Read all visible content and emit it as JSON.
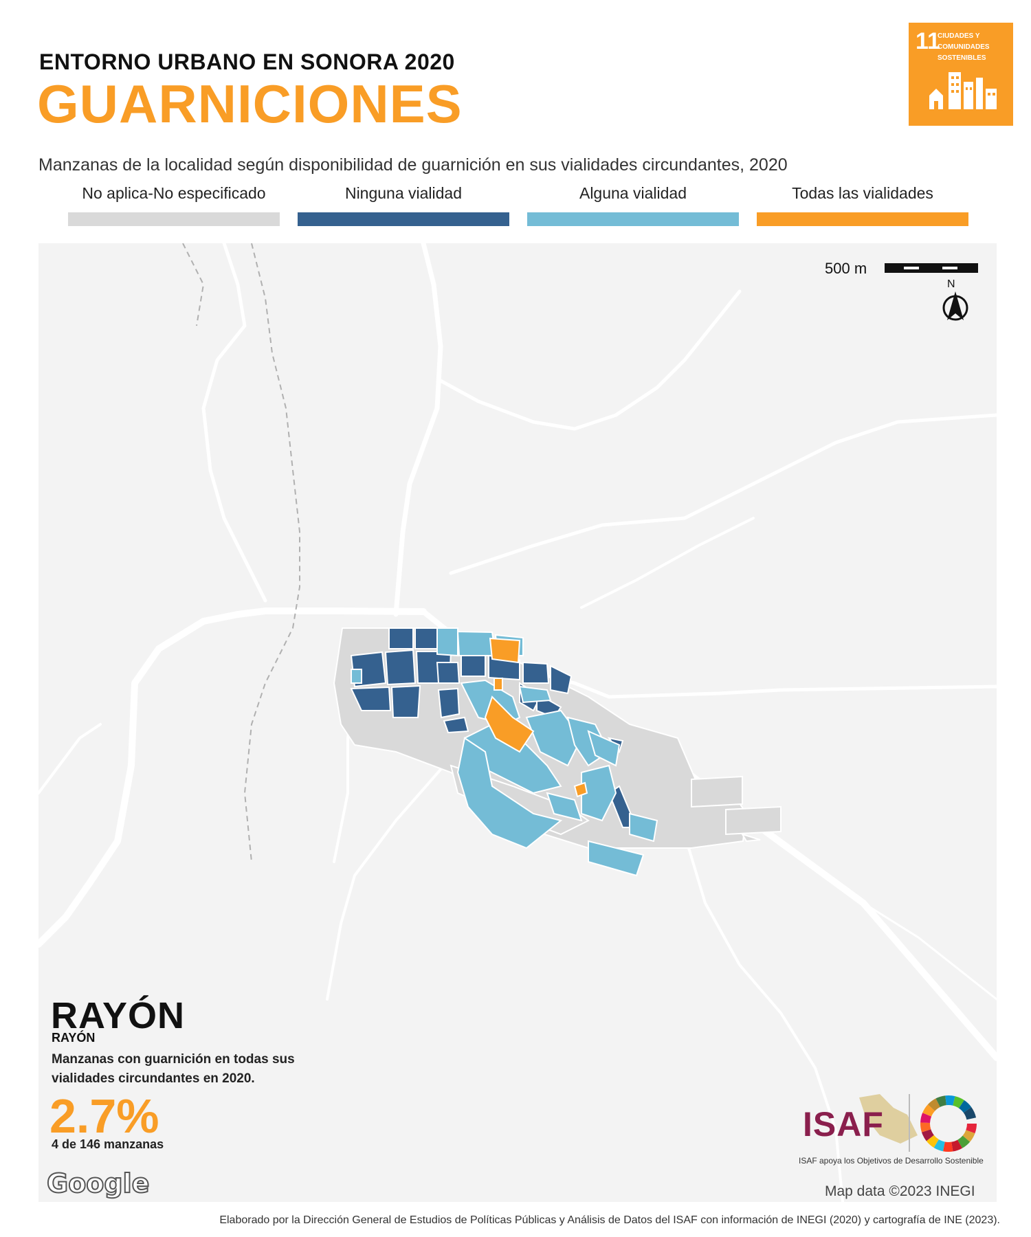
{
  "header": {
    "kicker": "ENTORNO URBANO EN SONORA 2020",
    "title": "GUARNICIONES",
    "subtitle": "Manzanas de la localidad según disponibilidad de guarnición en sus vialidades circundantes, 2020"
  },
  "sdg_badge": {
    "number": "11",
    "text": "CIUDADES Y COMUNIDADES SOSTENIBLES",
    "color": "#f99d26"
  },
  "legend": [
    {
      "label": "No aplica-No especificado",
      "color": "#d9d9d9"
    },
    {
      "label": "Ninguna vialidad",
      "color": "#35618f"
    },
    {
      "label": "Alguna vialidad",
      "color": "#74bcd6"
    },
    {
      "label": "Todas las vialidades",
      "color": "#f99d26"
    }
  ],
  "map": {
    "scale_label": "500 m",
    "north_label": "N",
    "attribution": "Map data ©2023 INEGI",
    "google_logo": "Google"
  },
  "locality": {
    "municipality": "RAYÓN",
    "locality": "RAYÓN",
    "stat_description": "Manzanas con guarnición en todas sus vialidades circundantes en 2020.",
    "stat_value": "2.7%",
    "stat_count": "4 de 146 manzanas"
  },
  "logos": {
    "isaf": "ISAF",
    "isaf_caption": "ISAF apoya los Objetivos de Desarrollo Sostenible"
  },
  "footer": "Elaborado por la Dirección General de Estudios de Políticas Públicas y Análisis de Datos del ISAF con información de INEGI (2020) y cartografía de INE (2023)."
}
